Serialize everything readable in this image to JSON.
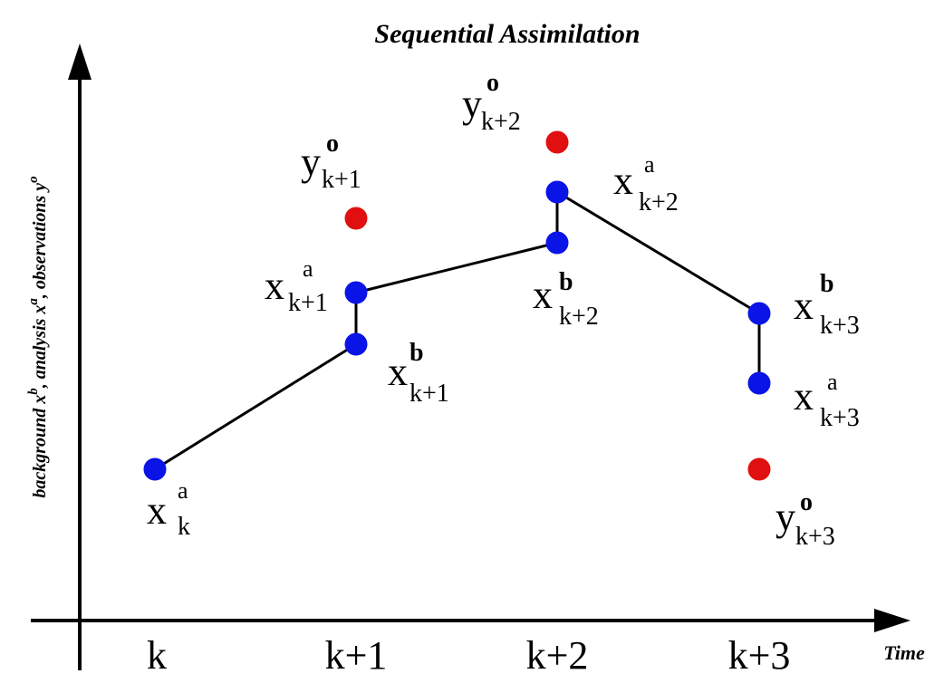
{
  "title": "Sequential Assimilation",
  "y_axis_label": {
    "part1": "background x",
    "sup1": "b",
    "part2": ", analysis x",
    "sup2": "a",
    "part3": ", observations y",
    "sup3": "o"
  },
  "x_axis_label": "Time",
  "ticks": [
    "k",
    "k+1",
    "k+2",
    "k+3"
  ],
  "colors": {
    "state": "#0a14e6",
    "observation": "#e01010",
    "line": "#000000"
  },
  "points": {
    "xa_k": {
      "kind": "state"
    },
    "xb_k1": {
      "kind": "state"
    },
    "xa_k1": {
      "kind": "state"
    },
    "yo_k1": {
      "kind": "observation"
    },
    "xb_k2": {
      "kind": "state"
    },
    "xa_k2": {
      "kind": "state"
    },
    "yo_k2": {
      "kind": "observation"
    },
    "xb_k3": {
      "kind": "state"
    },
    "xa_k3": {
      "kind": "state"
    },
    "yo_k3": {
      "kind": "observation"
    }
  },
  "labels": {
    "xa_k": {
      "base": "x",
      "sup": "a",
      "sub": "k"
    },
    "xa_k1": {
      "base": "x",
      "sup": "a",
      "sub": "k+1"
    },
    "xb_k1": {
      "base": "x",
      "sup": "b",
      "sub": "k+1"
    },
    "yo_k1": {
      "base": "y",
      "sup": "o",
      "sub": "k+1"
    },
    "yo_k2": {
      "base": "y",
      "sup": "o",
      "sub": "k+2"
    },
    "xa_k2": {
      "base": "x",
      "sup": "a",
      "sub": "k+2"
    },
    "xb_k2": {
      "base": "x",
      "sup": "b",
      "sub": "k+2"
    },
    "xb_k3": {
      "base": "x",
      "sup": "b",
      "sub": "k+3"
    },
    "xa_k3": {
      "base": "x",
      "sup": "a",
      "sub": "k+3"
    },
    "yo_k3": {
      "base": "y",
      "sup": "o",
      "sub": "k+3"
    }
  }
}
